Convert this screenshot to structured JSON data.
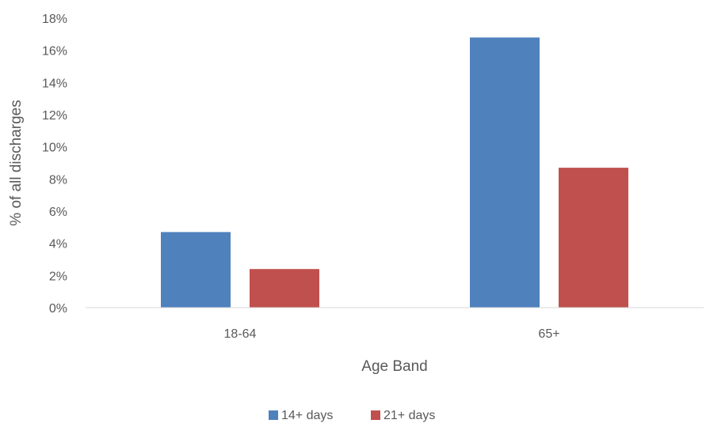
{
  "chart_data": {
    "type": "bar",
    "title": "",
    "xlabel": "Age Band",
    "ylabel": "% of all discharges",
    "categories": [
      "18-64",
      "65+"
    ],
    "series": [
      {
        "name": "14+ days",
        "values": [
          4.7,
          16.8
        ]
      },
      {
        "name": "21+ days",
        "values": [
          2.4,
          8.7
        ]
      }
    ],
    "ylim": [
      0,
      18
    ],
    "y_ticks": [
      "0%",
      "2%",
      "4%",
      "6%",
      "8%",
      "10%",
      "12%",
      "14%",
      "16%",
      "18%"
    ],
    "grid": false,
    "legend_position": "bottom",
    "colors": [
      "#4F81BD",
      "#C0504D"
    ]
  }
}
